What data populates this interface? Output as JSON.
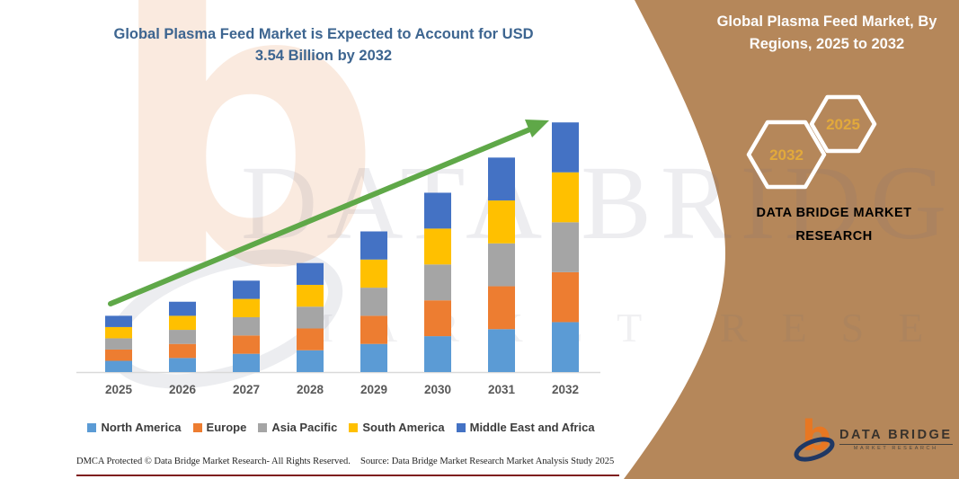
{
  "main": {
    "title_line1": "Global Plasma Feed Market is Expected to Account for USD",
    "title_line2": "3.54 Billion by 2032"
  },
  "chart_data": {
    "type": "bar",
    "stacked": true,
    "title": "Global Plasma Feed Market is Expected to Account for USD 3.54 Billion by 2032",
    "unit": "USD Billion",
    "categories": [
      "2025",
      "2026",
      "2027",
      "2028",
      "2029",
      "2030",
      "2031",
      "2032"
    ],
    "series": [
      {
        "name": "North America",
        "color": "#5B9BD5",
        "values": [
          0.16,
          0.2,
          0.26,
          0.31,
          0.4,
          0.51,
          0.61,
          0.71
        ]
      },
      {
        "name": "Europe",
        "color": "#ED7D31",
        "values": [
          0.16,
          0.2,
          0.26,
          0.31,
          0.4,
          0.51,
          0.61,
          0.71
        ]
      },
      {
        "name": "Asia Pacific",
        "color": "#A5A5A5",
        "values": [
          0.16,
          0.2,
          0.26,
          0.31,
          0.4,
          0.51,
          0.61,
          0.71
        ]
      },
      {
        "name": "South America",
        "color": "#FFC000",
        "values": [
          0.16,
          0.2,
          0.26,
          0.31,
          0.4,
          0.51,
          0.61,
          0.71
        ]
      },
      {
        "name": "Middle East and Africa",
        "color": "#4472C4",
        "values": [
          0.16,
          0.2,
          0.26,
          0.31,
          0.4,
          0.51,
          0.61,
          0.71
        ]
      }
    ],
    "estimated_totals": [
      0.79,
      1.02,
      1.29,
      1.53,
      2.02,
      2.53,
      3.04,
      3.54
    ],
    "ylim": [
      0,
      3.7
    ],
    "y_axis_hidden": true,
    "grid": false,
    "legend_position": "bottom",
    "trend_arrow_color": "#5FA848"
  },
  "watermark": {
    "line1": "DATA BRIDGE",
    "line2": "MARKET RESEARCH"
  },
  "footer": {
    "dmca": "DMCA Protected © Data Bridge Market Research-  All Rights Reserved.",
    "source": "Source: Data Bridge Market Research  Market Analysis Study 2025"
  },
  "side_panel": {
    "title": "Global Plasma Feed Market, By Regions, 2025 to 2032",
    "hexagons": [
      {
        "label": "2032"
      },
      {
        "label": "2025"
      }
    ],
    "brand": "DATA BRIDGE MARKET RESEARCH",
    "colors": {
      "panel_brown": "#B5875A",
      "accent_gold": "#DFA93C",
      "title_blue": "#3D6590",
      "logo_orange": "#E87722",
      "logo_navy": "#1F3864"
    },
    "logo": {
      "name": "DATA BRIDGE",
      "subtitle": "MARKET RESEARCH"
    }
  }
}
